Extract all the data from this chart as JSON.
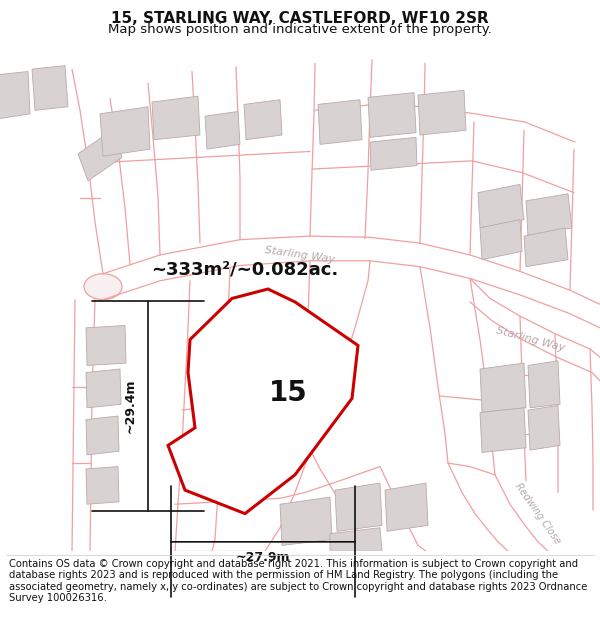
{
  "title": "15, STARLING WAY, CASTLEFORD, WF10 2SR",
  "subtitle": "Map shows position and indicative extent of the property.",
  "area_text": "~333m²/~0.082ac.",
  "label_15": "15",
  "dim_height": "~29.4m",
  "dim_width": "~27.9m",
  "street_starling_way_1": "Starling Way",
  "street_starling_way_2": "Starling Way",
  "street_redwing_close": "Redwing Close",
  "footer": "Contains OS data © Crown copyright and database right 2021. This information is subject to Crown copyright and database rights 2023 and is reproduced with the permission of HM Land Registry. The polygons (including the associated geometry, namely x, y co-ordinates) are subject to Crown copyright and database rights 2023 Ordnance Survey 100026316.",
  "bg_color": "#ffffff",
  "road_line_color": "#f0a0a0",
  "building_fill": "#d8d2d2",
  "building_edge": "#bbaaaa",
  "main_poly_color": "#cc0000",
  "street_label_color": "#b8a8a8",
  "dim_color": "#111111",
  "text_color": "#111111",
  "title_fontsize": 11,
  "subtitle_fontsize": 9.5,
  "area_fontsize": 13,
  "number_fontsize": 20,
  "dim_fontsize": 9,
  "street_fontsize": 8,
  "footer_fontsize": 7.2
}
